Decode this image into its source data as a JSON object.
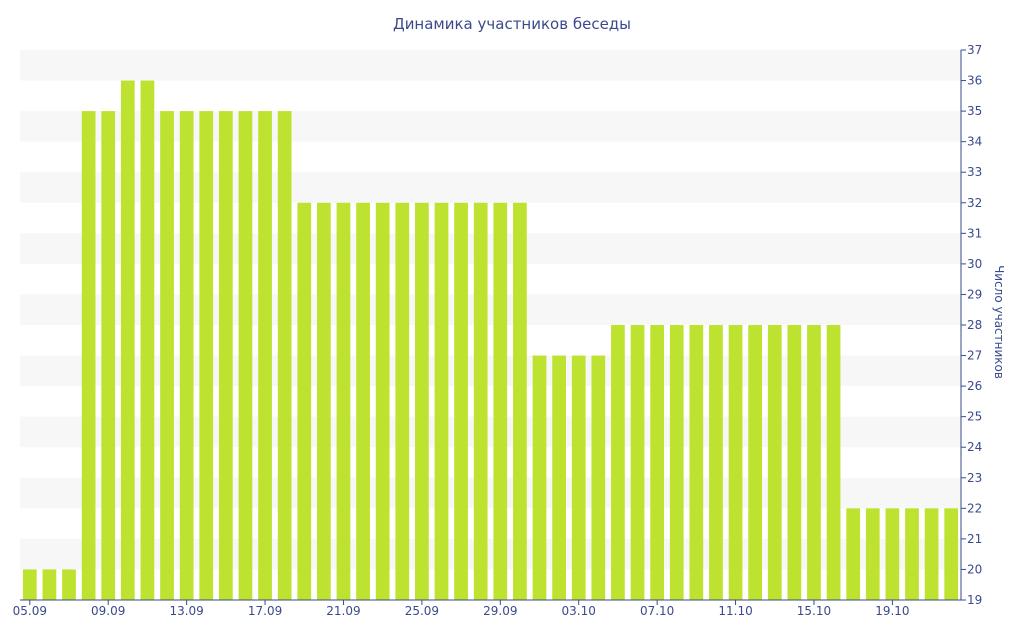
{
  "chart_data": {
    "type": "bar",
    "title": "Динамика участников беседы",
    "ylabel": "Число участников",
    "y_axis_side": "right",
    "ylim": [
      19,
      37
    ],
    "yticks": [
      19,
      20,
      21,
      22,
      23,
      24,
      25,
      26,
      27,
      28,
      29,
      30,
      31,
      32,
      33,
      34,
      35,
      36,
      37
    ],
    "x_tick_labels": [
      "05.09",
      "09.09",
      "13.09",
      "17.09",
      "21.09",
      "25.09",
      "29.09",
      "03.10",
      "07.10",
      "11.10",
      "15.10",
      "19.10"
    ],
    "categories": [
      "05.09",
      "06.09",
      "07.09",
      "08.09",
      "09.09",
      "10.09",
      "11.09",
      "12.09",
      "13.09",
      "14.09",
      "15.09",
      "16.09",
      "17.09",
      "18.09",
      "19.09",
      "20.09",
      "21.09",
      "22.09",
      "23.09",
      "24.09",
      "25.09",
      "26.09",
      "27.09",
      "28.09",
      "29.09",
      "30.09",
      "01.10",
      "02.10",
      "03.10",
      "04.10",
      "05.10",
      "06.10",
      "07.10",
      "08.10",
      "09.10",
      "10.10",
      "11.10",
      "12.10",
      "13.10",
      "14.10",
      "15.10",
      "16.10",
      "17.10",
      "18.10",
      "19.10",
      "20.10",
      "21.10",
      "22.10"
    ],
    "values": [
      20,
      20,
      20,
      35,
      35,
      36,
      36,
      35,
      35,
      35,
      35,
      35,
      35,
      35,
      32,
      32,
      32,
      32,
      32,
      32,
      32,
      32,
      32,
      32,
      32,
      32,
      27,
      27,
      27,
      27,
      28,
      28,
      28,
      28,
      28,
      28,
      28,
      28,
      28,
      28,
      28,
      28,
      22,
      22,
      22,
      22,
      22,
      22
    ],
    "grid": "horizontal bands",
    "colors": {
      "bar": "#bde22f",
      "band": "#f7f7f7",
      "text": "#3a4a8c",
      "axis": "#3a4a8c"
    }
  }
}
